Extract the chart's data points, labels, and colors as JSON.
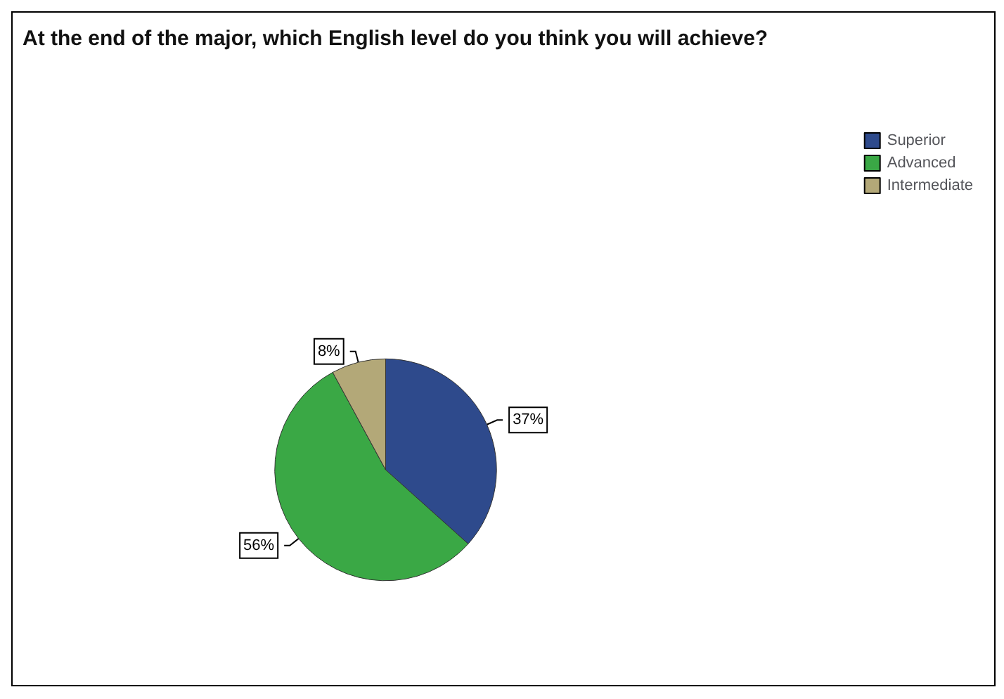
{
  "chart_data": {
    "type": "pie",
    "title": "At the end of the major, which English level do you think you will achieve?",
    "categories": [
      "Superior",
      "Advanced",
      "Intermediate"
    ],
    "values": [
      37,
      56,
      8
    ],
    "colors": [
      "#2e4a8c",
      "#3aa845",
      "#b3a878"
    ],
    "value_labels": [
      "37%",
      "56%",
      "8%"
    ],
    "legend": "top right"
  }
}
